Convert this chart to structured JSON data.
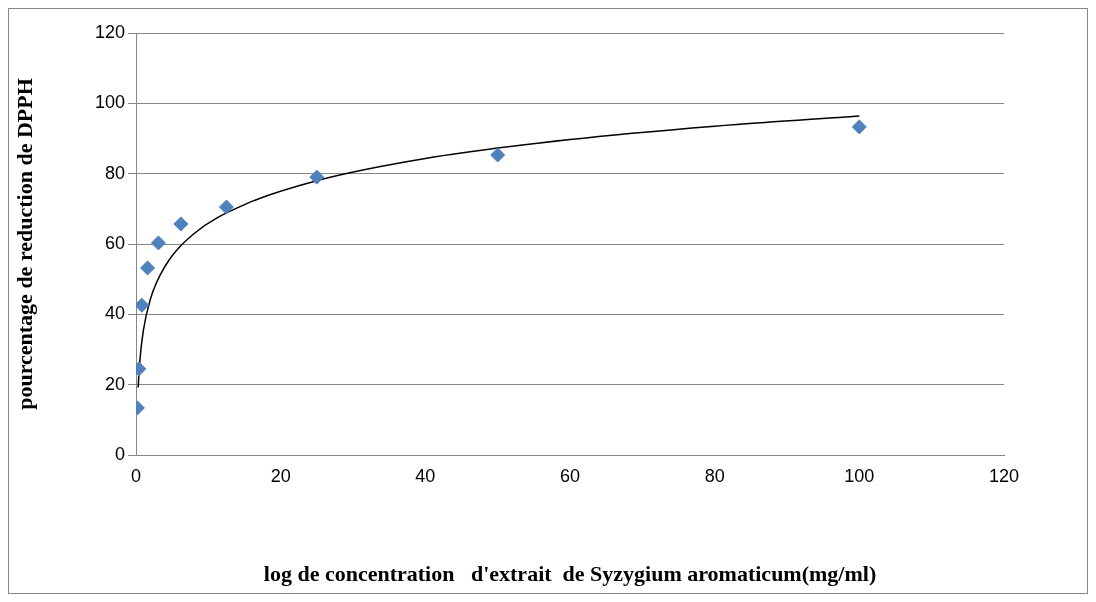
{
  "chart_data": {
    "type": "scatter",
    "xlabel": "log de concentration   d'extrait  de Syzygium aromaticum(mg/ml)",
    "ylabel": "pourcentage de reduction de DPPH",
    "xlim": [
      0,
      120
    ],
    "xticks": [
      0,
      20,
      40,
      60,
      80,
      100,
      120
    ],
    "ylim": [
      0,
      120
    ],
    "yticks": [
      0,
      20,
      40,
      60,
      80,
      100,
      120
    ],
    "grid": "y",
    "series": [
      {
        "type": "scatter",
        "marker": "diamond",
        "color": "#4f81bd",
        "x": [
          0.2,
          0.4,
          0.8,
          1.6,
          3.1,
          6.2,
          12.5,
          25,
          50,
          100
        ],
        "values": [
          13.4,
          24.5,
          42.6,
          53.2,
          60.3,
          65.7,
          70.5,
          79.0,
          85.3,
          93.3
        ]
      },
      {
        "type": "line",
        "marker": "none",
        "color": "#000000",
        "x": [
          0.3,
          0.5,
          1,
          2,
          4,
          8,
          15,
          25,
          40,
          60,
          80,
          100
        ],
        "values": [
          19.2,
          26.0,
          35.2,
          44.4,
          53.6,
          62.9,
          71.2,
          78.0,
          84.3,
          89.7,
          93.5,
          96.4
        ]
      }
    ]
  }
}
